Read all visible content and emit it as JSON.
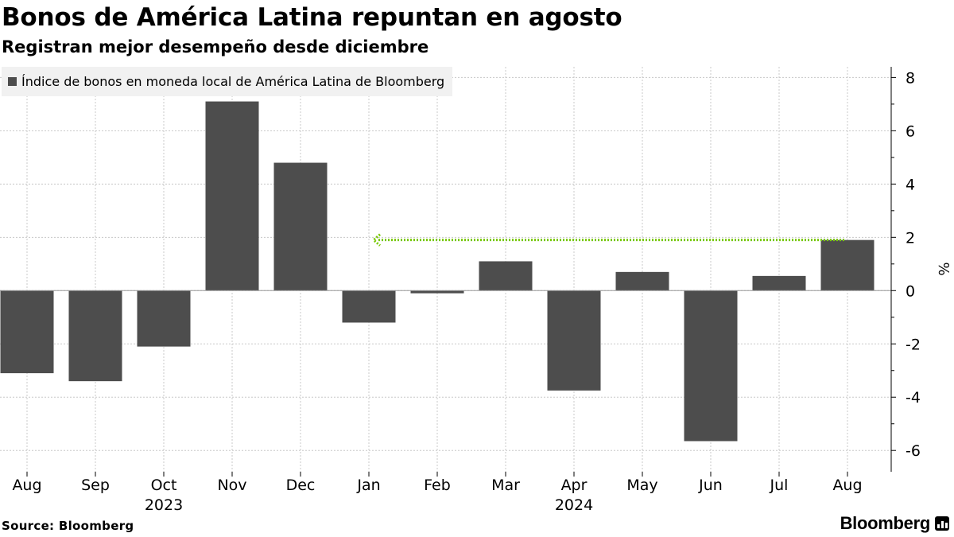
{
  "header": {
    "title": "Bonos de América Latina repuntan en agosto",
    "subtitle": "Registran mejor desempeño desde diciembre"
  },
  "legend": {
    "label": "Índice de bonos en moneda local de América Latina de Bloomberg"
  },
  "footer": {
    "source": "Source: Bloomberg",
    "brand": "Bloomberg",
    "brand_icon": "bloomberg-terminal-icon"
  },
  "colors": {
    "bar": "#4d4d4d",
    "annotation": "#77c800",
    "grid": "#c8c8c8",
    "axis": "#000000"
  },
  "chart_data": {
    "type": "bar",
    "title": "Bonos de América Latina repuntan en agosto",
    "subtitle": "Registran mejor desempeño desde diciembre",
    "categories": [
      "Aug",
      "Sep",
      "Oct",
      "Nov",
      "Dec",
      "Jan",
      "Feb",
      "Mar",
      "Apr",
      "May",
      "Jun",
      "Jul",
      "Aug"
    ],
    "year_labels": [
      {
        "label": "2023",
        "category_index": 2
      },
      {
        "label": "2024",
        "category_index": 8
      }
    ],
    "series": [
      {
        "name": "Índice de bonos en moneda local de América Latina de Bloomberg",
        "values": [
          -3.1,
          -3.4,
          -2.1,
          7.1,
          4.8,
          -1.2,
          -0.1,
          1.1,
          -3.75,
          0.7,
          -5.65,
          0.55,
          1.9
        ]
      }
    ],
    "ylabel": "%",
    "ylim": [
      -6.8,
      8.4
    ],
    "yticks": [
      -6,
      -4,
      -2,
      0,
      2,
      4,
      6,
      8
    ],
    "ytick_labels": [
      "-6",
      "-4",
      "-2",
      "0",
      "2",
      "4",
      "6",
      "8"
    ],
    "y_axis_position": "right",
    "grid": true,
    "legend_position": "top-left",
    "annotations": [
      {
        "type": "arrow",
        "from_category_index": 12,
        "to_category_index": 5,
        "y": 1.9,
        "color": "#77c800",
        "style": "dotted"
      }
    ]
  }
}
